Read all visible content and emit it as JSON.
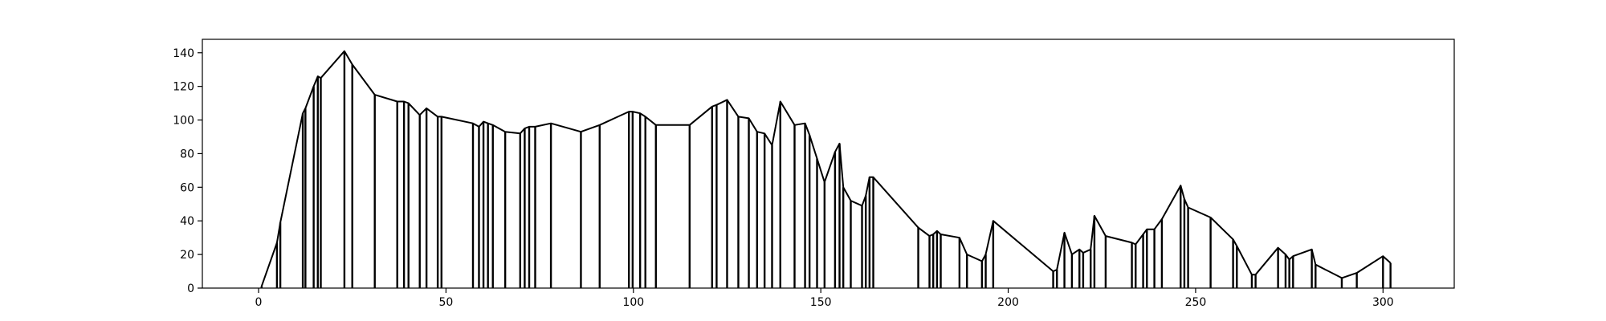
{
  "chart_data": {
    "type": "line",
    "title": "",
    "xlabel": "",
    "ylabel": "",
    "xlim": [
      -15,
      319
    ],
    "ylim": [
      0,
      148
    ],
    "x_ticks": [
      0,
      50,
      100,
      150,
      200,
      250,
      300
    ],
    "y_ticks": [
      0,
      20,
      40,
      60,
      80,
      100,
      120,
      140
    ],
    "grid": false,
    "drop_lines": true,
    "colors": {
      "line": "#000000",
      "axes": "#000000",
      "background": "#ffffff"
    },
    "series": [
      {
        "x": [
          0.8,
          4.9,
          5.8,
          11.8,
          12.5,
          14.7,
          15.8,
          16.6,
          22.9,
          25.0,
          31.0,
          37.0,
          38.8,
          40.0,
          43.0,
          44.8,
          47.8,
          48.8,
          57.2,
          58.8,
          60.0,
          61.2,
          62.5,
          65.8,
          69.8,
          71.0,
          72.2,
          73.8,
          78.0,
          86.0,
          91.0,
          98.8,
          99.8,
          101.8,
          103.2,
          106.0,
          115.0,
          121.0,
          122.2,
          125.0,
          128.0,
          130.8,
          133.0,
          135.0,
          137.0,
          139.2,
          143.0,
          145.8,
          147.0,
          149.0,
          151.0,
          153.8,
          155.0,
          156.0,
          158.0,
          161.0,
          162.0,
          163.0,
          164.0,
          176.0,
          179.0,
          180.0,
          181.0,
          182.0,
          187.0,
          189.0,
          193.0,
          194.0,
          196.0,
          212.0,
          213.0,
          215.0,
          217.0,
          219.0,
          220.0,
          222.0,
          223.0,
          226.0,
          233.0,
          234.0,
          236.0,
          237.0,
          239.0,
          241.0,
          246.0,
          247.0,
          248.0,
          254.0,
          260.0,
          261.0,
          265.0,
          266.0,
          272.0,
          274.0,
          275.0,
          276.0,
          281.0,
          282.0,
          289.0,
          293.0,
          300.0,
          302.0
        ],
        "y": [
          1,
          27,
          39,
          104,
          107,
          120,
          126,
          125,
          141,
          133,
          115,
          111,
          111,
          110,
          103,
          107,
          102,
          102,
          98,
          96,
          99,
          98,
          97,
          93,
          92,
          95,
          96,
          96,
          98,
          93,
          97,
          105,
          105,
          104,
          102,
          97,
          97,
          108,
          109,
          112,
          102,
          101,
          93,
          92,
          85,
          111,
          97,
          98,
          91,
          77,
          63,
          81,
          86,
          60,
          52,
          49,
          55,
          66,
          66,
          36,
          31,
          32,
          34,
          32,
          30,
          20,
          16,
          20,
          40,
          10,
          11,
          33,
          20,
          23,
          21,
          23,
          43,
          31,
          27,
          26,
          32,
          35,
          35,
          41,
          61,
          53,
          48,
          42,
          29,
          25,
          8,
          8,
          24,
          20,
          17,
          19,
          23,
          14,
          6,
          9,
          19,
          15
        ]
      }
    ]
  }
}
